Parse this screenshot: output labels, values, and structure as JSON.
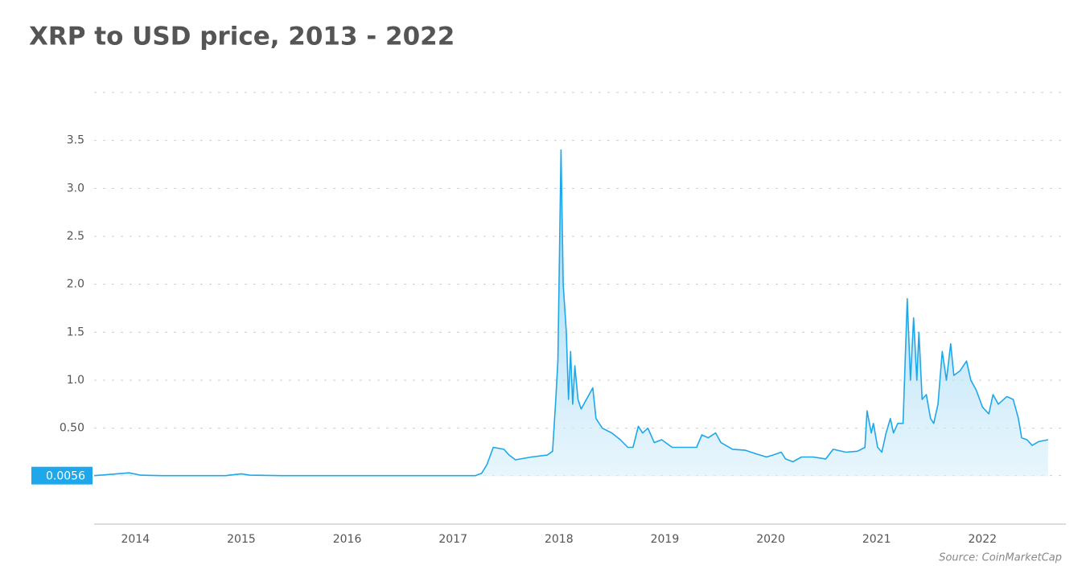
{
  "chart_data": {
    "type": "line",
    "title": "XRP to USD price, 2013 - 2022",
    "source": "Source: CoinMarketCap",
    "color": "#1ea7ea",
    "grid": true,
    "xlim": [
      2013.61,
      2022.75
    ],
    "xticks": [
      2014,
      2015,
      2016,
      2017,
      2018,
      2019,
      2020,
      2021,
      2022
    ],
    "ylim": [
      -0.5,
      4.0
    ],
    "yticks": [
      0.0056,
      {
        "value": 0.5,
        "label": "0.50"
      },
      {
        "value": 1,
        "label": "1.0"
      },
      1.5,
      {
        "value": 2,
        "label": "2.0"
      },
      2.5,
      {
        "value": 3,
        "label": "3.0"
      },
      3.5
    ],
    "x": [
      2013.61,
      2013.94,
      2014.05,
      2014.24,
      2014.85,
      2015.0,
      2015.08,
      2015.38,
      2017.21,
      2017.27,
      2017.32,
      2017.38,
      2017.48,
      2017.53,
      2017.59,
      2017.74,
      2017.89,
      2017.94,
      2017.97,
      2017.99,
      2018.02,
      2018.04,
      2018.07,
      2018.09,
      2018.11,
      2018.13,
      2018.15,
      2018.18,
      2018.21,
      2018.32,
      2018.35,
      2018.41,
      2018.5,
      2018.58,
      2018.65,
      2018.7,
      2018.75,
      2018.79,
      2018.84,
      2018.9,
      2018.97,
      2019.07,
      2019.19,
      2019.3,
      2019.35,
      2019.41,
      2019.48,
      2019.53,
      2019.64,
      2019.76,
      2019.87,
      2019.96,
      2020.02,
      2020.1,
      2020.14,
      2020.21,
      2020.29,
      2020.4,
      2020.52,
      2020.59,
      2020.71,
      2020.82,
      2020.89,
      2020.91,
      2020.95,
      2020.97,
      2021.01,
      2021.05,
      2021.09,
      2021.13,
      2021.16,
      2021.2,
      2021.25,
      2021.29,
      2021.32,
      2021.35,
      2021.38,
      2021.4,
      2021.43,
      2021.47,
      2021.51,
      2021.54,
      2021.58,
      2021.62,
      2021.66,
      2021.7,
      2021.73,
      2021.79,
      2021.85,
      2021.89,
      2021.94,
      2022.0,
      2022.06,
      2022.1,
      2022.15,
      2022.23,
      2022.29,
      2022.34,
      2022.37,
      2022.42,
      2022.47,
      2022.53,
      2022.62
    ],
    "values": [
      0.0056,
      0.035,
      0.01,
      0.0056,
      0.0056,
      0.025,
      0.01,
      0.0056,
      0.0056,
      0.03,
      0.12,
      0.3,
      0.28,
      0.22,
      0.17,
      0.2,
      0.22,
      0.26,
      0.8,
      1.2,
      3.4,
      2.0,
      1.5,
      0.8,
      1.3,
      0.75,
      1.15,
      0.8,
      0.7,
      0.92,
      0.6,
      0.5,
      0.45,
      0.38,
      0.3,
      0.3,
      0.52,
      0.45,
      0.5,
      0.35,
      0.38,
      0.3,
      0.3,
      0.3,
      0.43,
      0.4,
      0.45,
      0.35,
      0.28,
      0.27,
      0.23,
      0.2,
      0.22,
      0.25,
      0.18,
      0.15,
      0.2,
      0.2,
      0.18,
      0.28,
      0.25,
      0.26,
      0.3,
      0.68,
      0.45,
      0.55,
      0.3,
      0.25,
      0.45,
      0.6,
      0.45,
      0.55,
      0.55,
      1.85,
      1.0,
      1.65,
      1.0,
      1.5,
      0.8,
      0.85,
      0.6,
      0.55,
      0.75,
      1.3,
      1.0,
      1.38,
      1.05,
      1.1,
      1.2,
      1.0,
      0.9,
      0.72,
      0.65,
      0.85,
      0.75,
      0.83,
      0.8,
      0.6,
      0.4,
      0.38,
      0.32,
      0.36,
      0.38
    ]
  }
}
